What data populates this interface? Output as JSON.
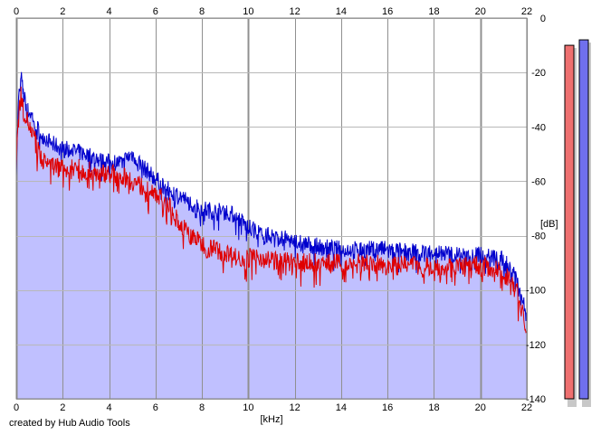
{
  "chart_data": {
    "type": "area",
    "xlabel": "[kHz]",
    "ylabel": "[dB]",
    "xlim": [
      0,
      22
    ],
    "ylim": [
      -140,
      0
    ],
    "x_ticks": [
      0,
      2,
      4,
      6,
      8,
      10,
      12,
      14,
      16,
      18,
      20,
      22
    ],
    "y_ticks": [
      0,
      -20,
      -40,
      -60,
      -80,
      -100,
      -120,
      -140
    ],
    "grid": true,
    "colors": {
      "fill": "#c0c0ff",
      "blue": "#0000cc",
      "red": "#e00000",
      "red_meter": "#ee7070",
      "blue_meter": "#7070ee"
    },
    "series": [
      {
        "color": "#0000cc",
        "x": [
          0,
          0.1,
          0.2,
          0.3,
          0.5,
          0.7,
          1,
          1.5,
          2,
          2.5,
          3,
          3.5,
          4,
          4.5,
          5,
          5.5,
          6,
          6.5,
          7,
          7.5,
          8,
          8.5,
          9,
          9.5,
          10,
          10.5,
          11,
          12,
          13,
          14,
          15,
          16,
          17,
          18,
          19,
          20,
          20.5,
          21,
          21.5,
          22
        ],
        "values": [
          -55,
          -30,
          -21,
          -28,
          -34,
          -36,
          -42,
          -46,
          -48,
          -49,
          -50,
          -52,
          -53,
          -53,
          -50,
          -55,
          -59,
          -63,
          -65,
          -68,
          -70,
          -71,
          -71,
          -73,
          -77,
          -79,
          -80,
          -82,
          -84,
          -85,
          -85,
          -85,
          -86,
          -86,
          -87,
          -87,
          -88,
          -89,
          -93,
          -110
        ]
      },
      {
        "color": "#e00000",
        "x": [
          0,
          0.1,
          0.2,
          0.3,
          0.5,
          0.7,
          1,
          1.5,
          2,
          2.5,
          3,
          3.5,
          4,
          4.5,
          5,
          5.5,
          6,
          6.5,
          7,
          7.5,
          8,
          8.5,
          9,
          9.5,
          10,
          10.5,
          11,
          12,
          13,
          14,
          15,
          16,
          17,
          18,
          19,
          20,
          20.5,
          21,
          21.5,
          22
        ],
        "values": [
          -50,
          -36,
          -28,
          -34,
          -38,
          -42,
          -50,
          -54,
          -55,
          -55,
          -56,
          -57,
          -57,
          -58,
          -60,
          -62,
          -64,
          -68,
          -75,
          -80,
          -83,
          -85,
          -86,
          -88,
          -88,
          -88,
          -89,
          -90,
          -90,
          -90,
          -90,
          -91,
          -91,
          -91,
          -91,
          -91,
          -92,
          -94,
          -98,
          -115
        ]
      }
    ],
    "level_meters": [
      {
        "color": "#ee7070",
        "top_db": -10
      },
      {
        "color": "#7070ee",
        "top_db": -8
      }
    ]
  },
  "footer": {
    "credit": "created by Hub Audio Tools"
  }
}
